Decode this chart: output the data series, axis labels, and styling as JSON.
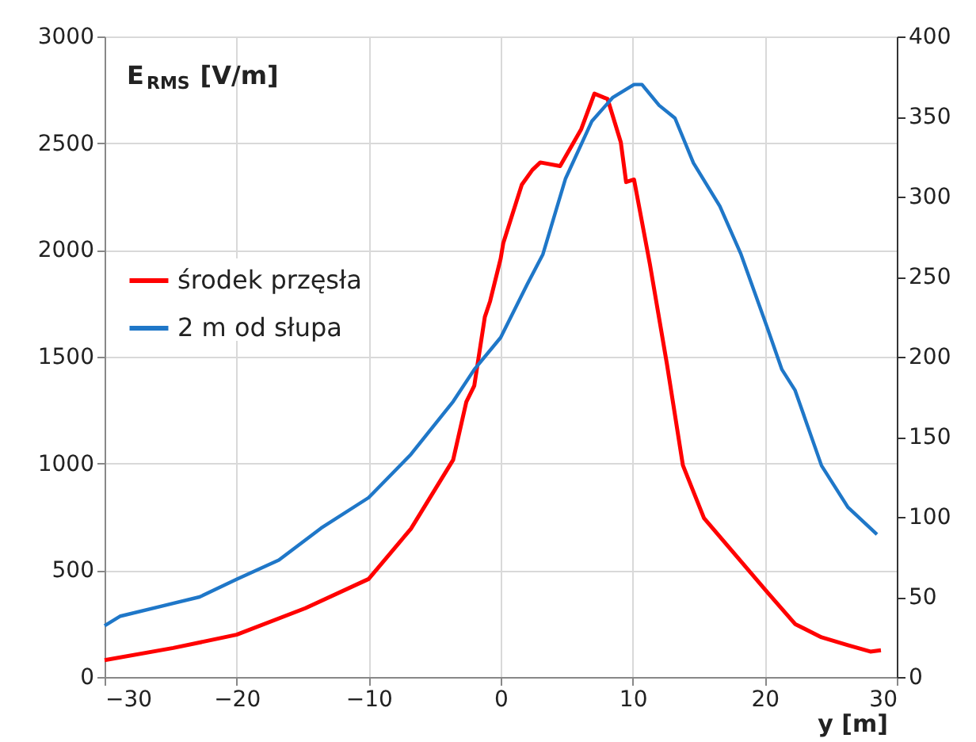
{
  "chart_data": {
    "type": "line",
    "ylabel": "E$_{RMS}$ [V/m]",
    "xlabel": "y [m]",
    "xlim": [
      -30,
      30
    ],
    "xticks": [
      -30,
      -20,
      -10,
      0,
      10,
      20,
      30
    ],
    "ylim": [
      0,
      3000
    ],
    "yticks": [
      0,
      500,
      1000,
      1500,
      2000,
      2500,
      3000
    ],
    "y2lim": [
      0,
      400
    ],
    "y2ticks": [
      0,
      50,
      100,
      150,
      200,
      250,
      300,
      350,
      400
    ],
    "grid": true,
    "legend": "left",
    "line_style": "solid",
    "marker": "none",
    "series": [
      {
        "name": "środek przęsła",
        "color": "#ff0000",
        "x": [
          -30,
          -24.8,
          -20,
          -14.8,
          -10,
          -6.8,
          -3.6,
          -2.6,
          -2,
          -1.2,
          -0.8,
          0,
          0.2,
          1.6,
          2.4,
          3,
          4.5,
          6.1,
          7.1,
          8.1,
          9.1,
          9.5,
          10.1,
          11.3,
          12.6,
          13.8,
          15.4,
          17.8,
          20.2,
          22.3,
          24.3,
          26.3,
          28,
          28.8
        ],
        "values": [
          79,
          136,
          198,
          322,
          459,
          694,
          1017,
          1289,
          1364,
          1686,
          1760,
          1960,
          2033,
          2306,
          2375,
          2410,
          2393,
          2566,
          2732,
          2707,
          2504,
          2318,
          2330,
          1934,
          1463,
          992,
          744,
          570,
          397,
          248,
          186,
          149,
          119,
          125
        ]
      },
      {
        "name": "2 m od słupa",
        "color": "#1f77c8",
        "axis": "y2",
        "x": [
          -30,
          -28.8,
          -22.8,
          -20,
          -16.8,
          -13.6,
          -10,
          -6.8,
          -3.6,
          -2,
          0,
          2,
          3.2,
          4.9,
          6.9,
          8.5,
          10.1,
          10.7,
          12,
          13.2,
          14.6,
          16.6,
          18.2,
          20.2,
          21.3,
          22.3,
          24.3,
          26.3,
          28.5
        ],
        "values": [
          32,
          38,
          50,
          61,
          73,
          93,
          112,
          139,
          172,
          192,
          212,
          245,
          264,
          311,
          347,
          362,
          370,
          370,
          357,
          349,
          321,
          294,
          264,
          218,
          192,
          179,
          132,
          106,
          89
        ]
      }
    ]
  }
}
